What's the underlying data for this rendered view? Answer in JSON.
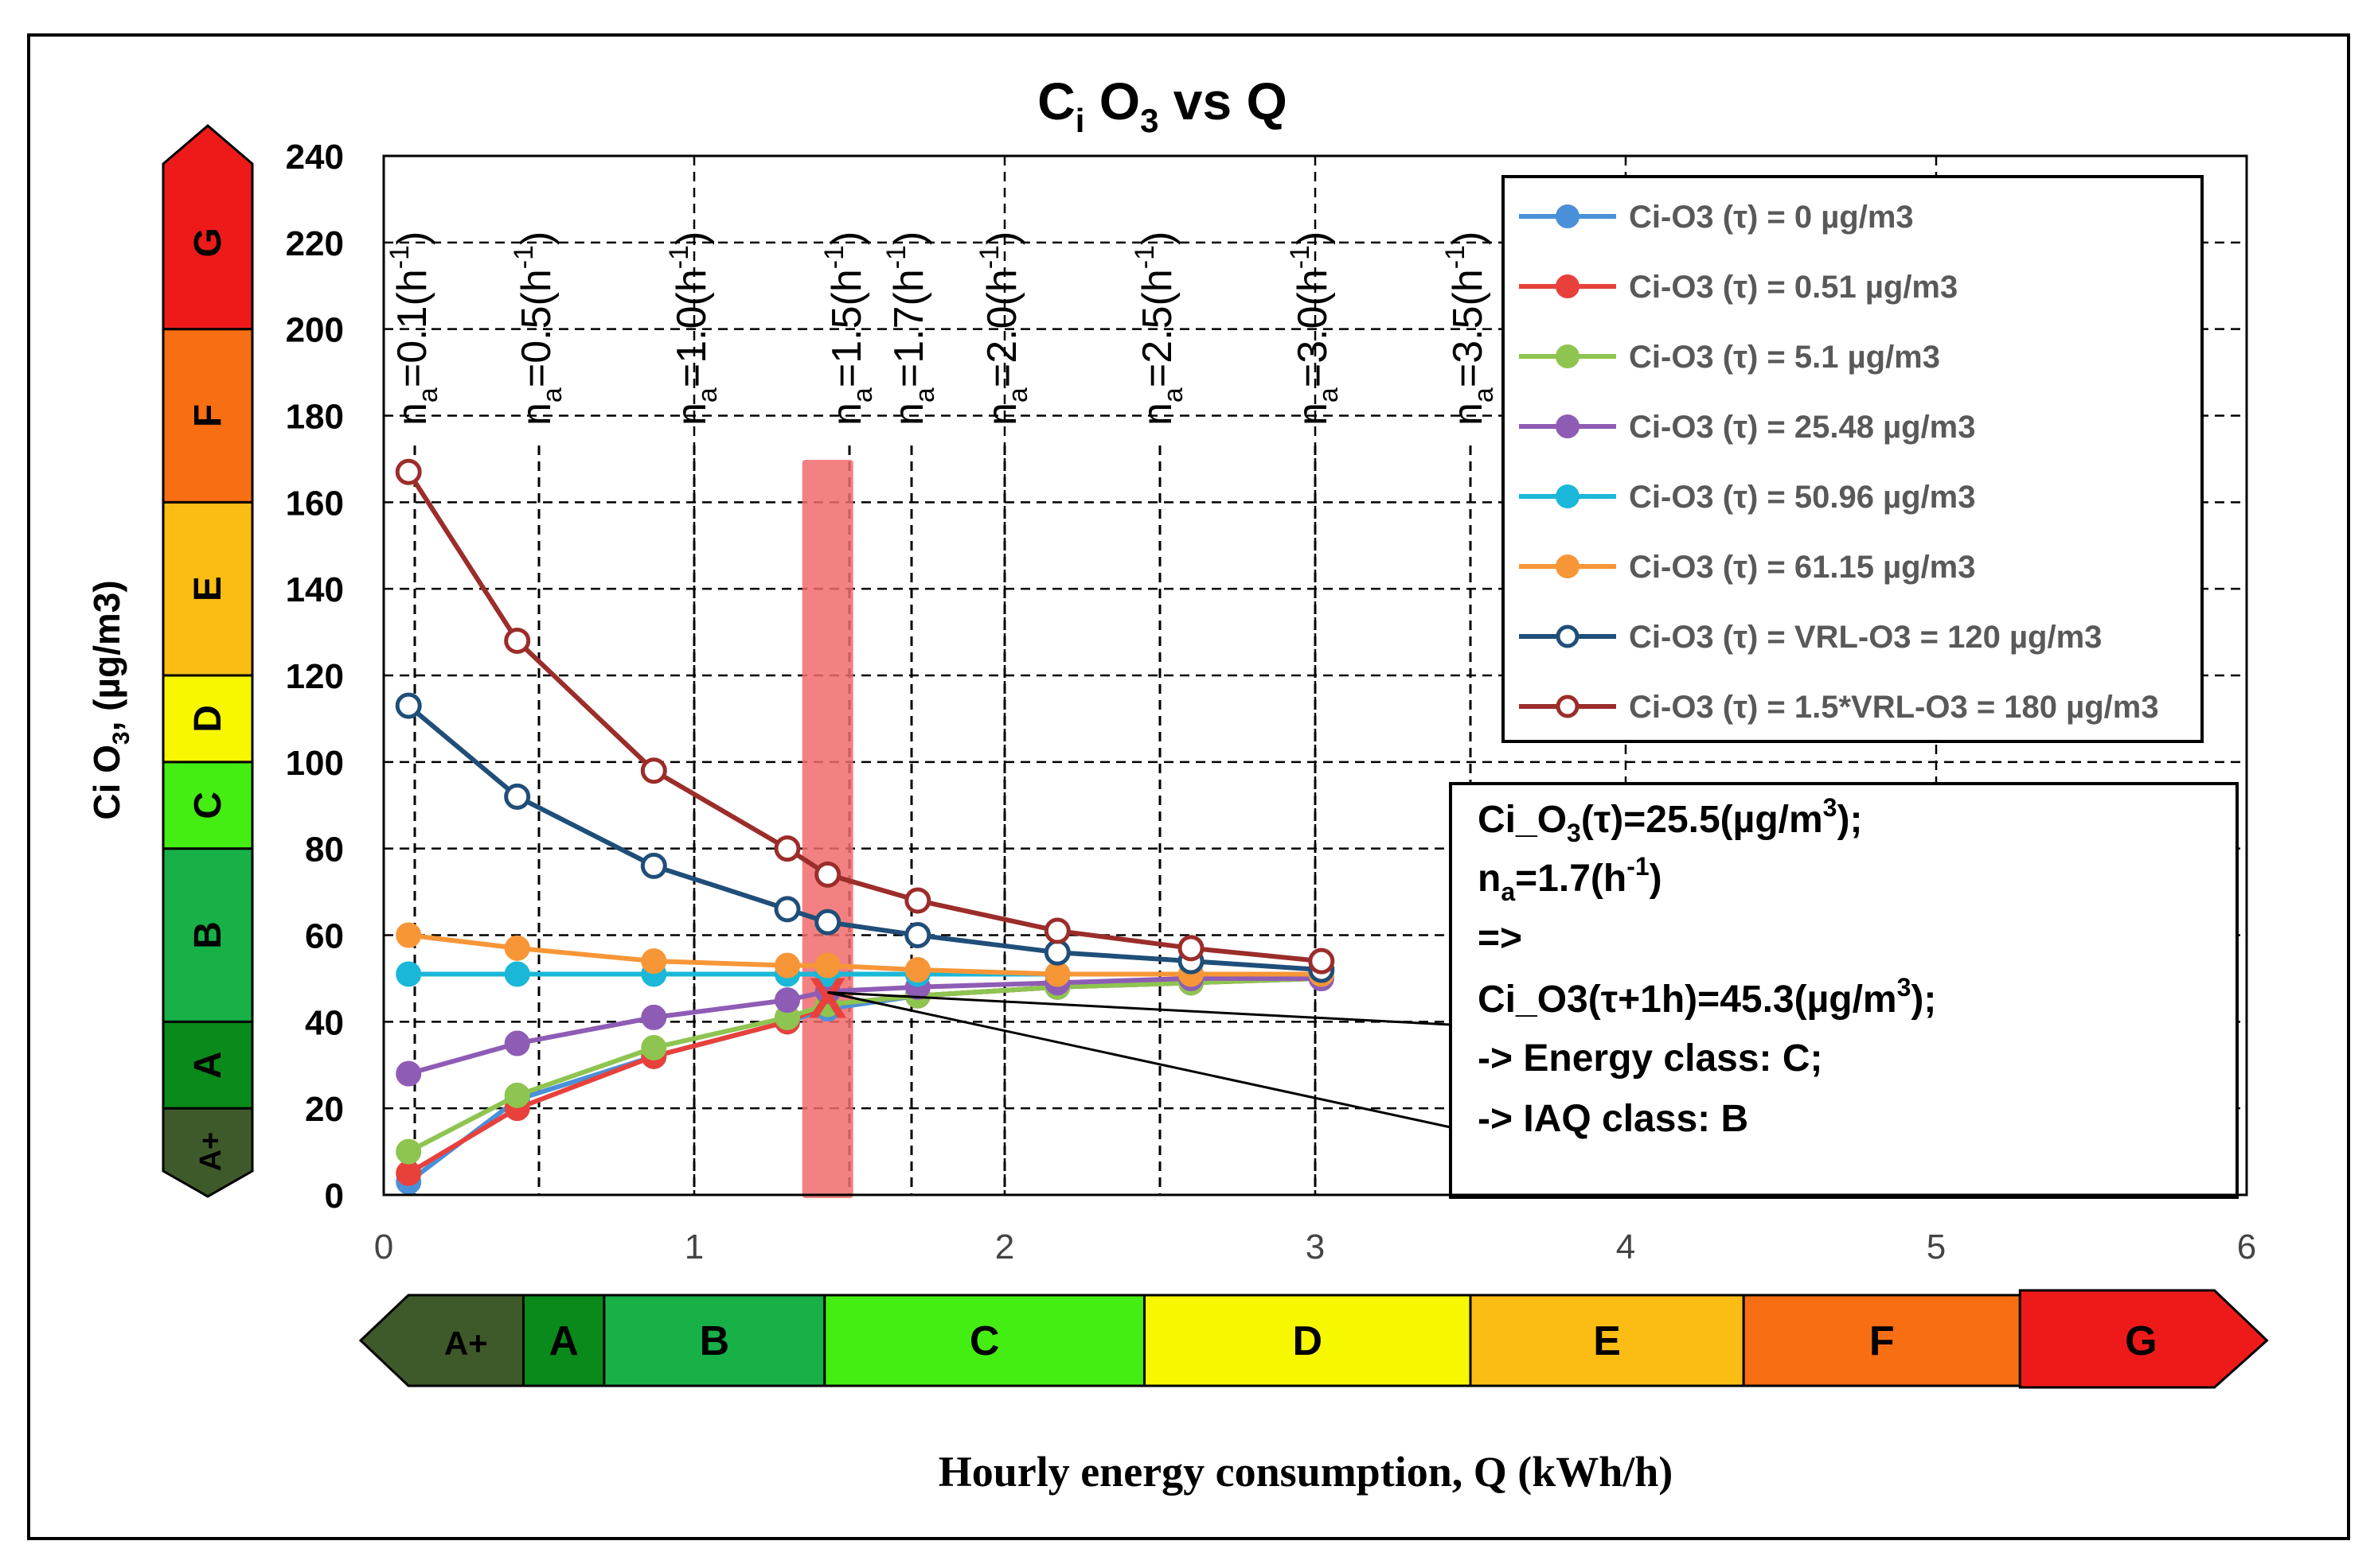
{
  "chart_data": {
    "type": "line",
    "title": "C",
    "title_sub": "i",
    "title_mid": " O",
    "title_sub2": "3",
    "title_end": " vs Q",
    "xlabel": "Hourly energy consumption, Q (kWh/h)",
    "ylabel": "Ci O",
    "ylabel_sub": "3",
    "ylabel_end": ", (µg/m3)",
    "xlim": [
      0,
      6
    ],
    "ylim": [
      0,
      240
    ],
    "x_ticks": [
      "0",
      "1",
      "2",
      "3",
      "4",
      "5",
      "6"
    ],
    "y_ticks": [
      "0",
      "20",
      "40",
      "60",
      "80",
      "100",
      "120",
      "140",
      "160",
      "180",
      "200",
      "220",
      "240"
    ],
    "x": [
      0.08,
      0.43,
      0.87,
      1.3,
      1.43,
      1.72,
      2.17,
      2.6,
      3.02
    ],
    "series": [
      {
        "name": "Ci-O3 (τ) =  0 µg/m3",
        "color": "#4a90d9",
        "open": false,
        "values": [
          3,
          22,
          32,
          40,
          43,
          46,
          48,
          49,
          50
        ]
      },
      {
        "name": "Ci-O3 (τ) =  0.51 µg/m3",
        "color": "#e8413c",
        "open": false,
        "values": [
          5,
          20,
          32,
          40,
          44,
          46,
          48,
          49,
          50
        ]
      },
      {
        "name": "Ci-O3 (τ) =  5.1 µg/m3",
        "color": "#8ec450",
        "open": false,
        "values": [
          10,
          23,
          34,
          41,
          44,
          46,
          48,
          49,
          50
        ]
      },
      {
        "name": "Ci-O3 (τ) =  25.48 µg/m3",
        "color": "#8e5cb5",
        "open": false,
        "values": [
          28,
          35,
          41,
          45,
          47,
          48,
          49,
          50,
          50
        ]
      },
      {
        "name": "Ci-O3 (τ) =  50.96 µg/m3",
        "color": "#1ab7d8",
        "open": false,
        "values": [
          51,
          51,
          51,
          51,
          51,
          51,
          51,
          51,
          51
        ]
      },
      {
        "name": "Ci-O3 (τ) =  61.15 µg/m3",
        "color": "#f79637",
        "open": false,
        "values": [
          60,
          57,
          54,
          53,
          53,
          52,
          51,
          51,
          51
        ]
      },
      {
        "name": "Ci-O3 (τ) =  VRL-O3 = 120 µg/m3",
        "color": "#1f4e79",
        "open": true,
        "values": [
          113,
          92,
          76,
          66,
          63,
          60,
          56,
          54,
          52
        ]
      },
      {
        "name": "Ci-O3 (τ) = 1.5*VRL-O3 = 180  µg/m3",
        "color": "#9b2d2a",
        "open": true,
        "values": [
          167,
          128,
          98,
          80,
          74,
          68,
          61,
          57,
          54
        ]
      }
    ],
    "legend_placement": "top-right",
    "vlines": [
      {
        "x": 0.1,
        "label": "n",
        "sub": "a",
        "eq": "=0.1(h",
        "sup": "-1",
        "close": ")"
      },
      {
        "x": 0.5,
        "label": "n",
        "sub": "a",
        "eq": "=0.5(h",
        "sup": "-1",
        "close": ")"
      },
      {
        "x": 1.0,
        "label": "n",
        "sub": "a",
        "eq": "=1.0(h",
        "sup": "-1",
        "close": ")"
      },
      {
        "x": 1.5,
        "label": "n",
        "sub": "a",
        "eq": "=1.5(h",
        "sup": "-1",
        "close": ")"
      },
      {
        "x": 1.7,
        "label": "n",
        "sub": "a",
        "eq": "=1.7(h",
        "sup": "-1",
        "close": ")"
      },
      {
        "x": 2.0,
        "label": "n",
        "sub": "a",
        "eq": "=2.0(h",
        "sup": "-1",
        "close": ")"
      },
      {
        "x": 2.5,
        "label": "n",
        "sub": "a",
        "eq": "=2.5(h",
        "sup": "-1",
        "close": ")"
      },
      {
        "x": 3.0,
        "label": "n",
        "sub": "a",
        "eq": "=3.0(h",
        "sup": "-1",
        "close": ")"
      },
      {
        "x": 3.5,
        "label": "n",
        "sub": "a",
        "eq": "=3.5(h",
        "sup": "-1",
        "close": ")"
      }
    ],
    "marker": {
      "x": 1.43,
      "y": 45.3,
      "symbol": "X",
      "color": "#e8413c"
    },
    "annotation": {
      "line1a": "Ci_O",
      "line1b": "3",
      "line1c": "(τ)=25.5(µg/m",
      "line1d": "3",
      "line1e": ");",
      "line2a": "n",
      "line2b": "a",
      "line2c": "=1.7(h",
      "line2d": "-1",
      "line2e": ")",
      "line3": "=>",
      "line4a": "Ci_O3(τ+1h)=45.3(µg/m",
      "line4b": "3",
      "line4c": ");",
      "line5": "-> Energy class: C;",
      "line6": "-> IAQ class: B"
    },
    "iaq_scale": [
      {
        "label": "A+",
        "from": 0,
        "to": 20,
        "color": "#3f5a2a"
      },
      {
        "label": "A",
        "from": 20,
        "to": 40,
        "color": "#0a8a1a"
      },
      {
        "label": "B",
        "from": 40,
        "to": 80,
        "color": "#17b148"
      },
      {
        "label": "C",
        "from": 80,
        "to": 100,
        "color": "#45ee12"
      },
      {
        "label": "D",
        "from": 100,
        "to": 120,
        "color": "#f7f700"
      },
      {
        "label": "E",
        "from": 120,
        "to": 160,
        "color": "#fbbd14"
      },
      {
        "label": "F",
        "from": 160,
        "to": 200,
        "color": "#f86e12"
      },
      {
        "label": "G",
        "from": 200,
        "to": 240,
        "color": "#ee1a1a"
      }
    ],
    "energy_scale": [
      {
        "label": "A+",
        "from": -0.1,
        "to": 0.45,
        "color": "#3f5a2a"
      },
      {
        "label": "A",
        "from": 0.45,
        "to": 0.71,
        "color": "#0a8a1a"
      },
      {
        "label": "B",
        "from": 0.71,
        "to": 1.42,
        "color": "#17b148"
      },
      {
        "label": "C",
        "from": 1.42,
        "to": 2.45,
        "color": "#45ee12"
      },
      {
        "label": "D",
        "from": 2.45,
        "to": 3.5,
        "color": "#f7f700"
      },
      {
        "label": "E",
        "from": 3.5,
        "to": 4.38,
        "color": "#fbbd14"
      },
      {
        "label": "F",
        "from": 4.38,
        "to": 5.27,
        "color": "#f86e12"
      },
      {
        "label": "G",
        "from": 5.27,
        "to": 6.05,
        "color": "#ee1a1a"
      }
    ]
  }
}
